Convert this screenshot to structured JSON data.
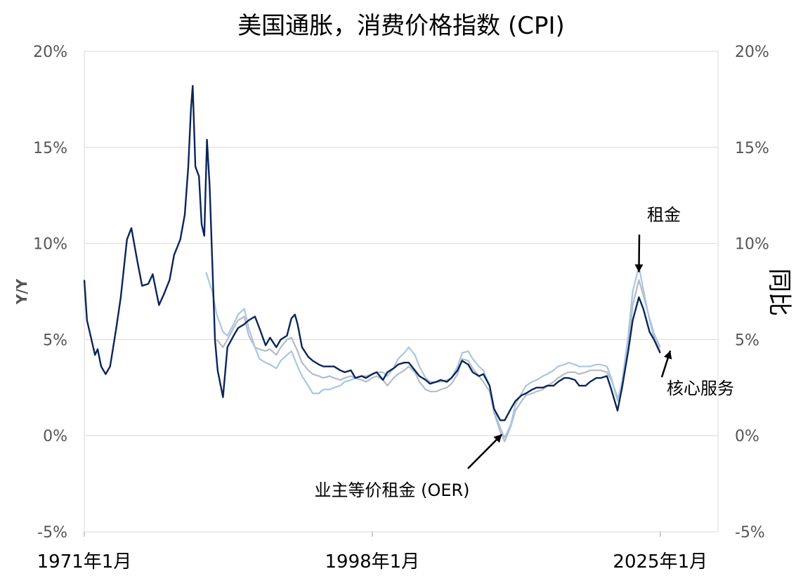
{
  "chart_data": {
    "type": "line",
    "title": "美国通胀，消费价格指数 (CPI)",
    "ylabel": "Y/Y",
    "ylabel_right": "同比",
    "ylim": [
      -5,
      20
    ],
    "yticks": [
      "-5%",
      "0%",
      "5%",
      "10%",
      "15%",
      "20%"
    ],
    "ytick_values": [
      -5,
      0,
      5,
      10,
      15,
      20
    ],
    "xlim": [
      "1971-01",
      "2030-06"
    ],
    "xticks": [
      "1971年1月",
      "1998年1月",
      "2025年1月"
    ],
    "xtick_values": [
      "1971-01",
      "1998-01",
      "2025-01"
    ],
    "grid": true,
    "series": [
      {
        "name": "核心服务",
        "color": "#0b2559",
        "points": [
          [
            "1971-01",
            8.1
          ],
          [
            "1971-04",
            6.0
          ],
          [
            "1971-08",
            5.2
          ],
          [
            "1972-01",
            4.2
          ],
          [
            "1972-04",
            4.5
          ],
          [
            "1972-08",
            3.6
          ],
          [
            "1973-01",
            3.2
          ],
          [
            "1973-06",
            3.6
          ],
          [
            "1974-01",
            5.6
          ],
          [
            "1974-06",
            7.2
          ],
          [
            "1975-01",
            10.2
          ],
          [
            "1975-06",
            10.8
          ],
          [
            "1976-01",
            9.0
          ],
          [
            "1976-06",
            7.8
          ],
          [
            "1977-01",
            7.9
          ],
          [
            "1977-06",
            8.4
          ],
          [
            "1978-01",
            6.8
          ],
          [
            "1978-06",
            7.3
          ],
          [
            "1979-01",
            8.1
          ],
          [
            "1979-06",
            9.4
          ],
          [
            "1980-01",
            10.2
          ],
          [
            "1980-06",
            11.5
          ],
          [
            "1980-10",
            14.0
          ],
          [
            "1981-01",
            17.0
          ],
          [
            "1981-03",
            18.2
          ],
          [
            "1981-06",
            14.0
          ],
          [
            "1981-10",
            13.5
          ],
          [
            "1982-01",
            11.0
          ],
          [
            "1982-04",
            10.4
          ],
          [
            "1982-07",
            15.4
          ],
          [
            "1982-10",
            13.0
          ],
          [
            "1983-01",
            9.0
          ],
          [
            "1983-04",
            5.0
          ],
          [
            "1983-07",
            3.4
          ],
          [
            "1984-01",
            2.0
          ],
          [
            "1984-06",
            4.6
          ],
          [
            "1985-01",
            5.2
          ],
          [
            "1985-06",
            5.6
          ],
          [
            "1986-01",
            5.8
          ],
          [
            "1986-06",
            6.0
          ],
          [
            "1987-01",
            6.2
          ],
          [
            "1987-06",
            5.6
          ],
          [
            "1988-01",
            4.7
          ],
          [
            "1988-06",
            5.1
          ],
          [
            "1989-01",
            4.6
          ],
          [
            "1989-06",
            5.0
          ],
          [
            "1990-01",
            5.2
          ],
          [
            "1990-06",
            6.1
          ],
          [
            "1990-10",
            6.3
          ],
          [
            "1991-01",
            5.8
          ],
          [
            "1991-06",
            4.6
          ],
          [
            "1992-01",
            4.1
          ],
          [
            "1992-06",
            3.9
          ],
          [
            "1993-01",
            3.7
          ],
          [
            "1993-06",
            3.6
          ],
          [
            "1994-01",
            3.6
          ],
          [
            "1994-06",
            3.6
          ],
          [
            "1995-01",
            3.4
          ],
          [
            "1995-06",
            3.3
          ],
          [
            "1996-01",
            3.4
          ],
          [
            "1996-06",
            3.0
          ],
          [
            "1997-01",
            3.1
          ],
          [
            "1997-06",
            3.0
          ],
          [
            "1998-01",
            3.2
          ],
          [
            "1998-06",
            3.3
          ],
          [
            "1999-01",
            2.9
          ],
          [
            "1999-06",
            3.3
          ],
          [
            "2000-01",
            3.5
          ],
          [
            "2000-06",
            3.7
          ],
          [
            "2001-01",
            3.8
          ],
          [
            "2001-06",
            3.8
          ],
          [
            "2002-01",
            3.4
          ],
          [
            "2002-06",
            3.1
          ],
          [
            "2003-01",
            2.9
          ],
          [
            "2003-06",
            2.7
          ],
          [
            "2004-01",
            2.8
          ],
          [
            "2004-06",
            2.9
          ],
          [
            "2005-01",
            2.8
          ],
          [
            "2005-06",
            3.0
          ],
          [
            "2006-01",
            3.4
          ],
          [
            "2006-06",
            3.9
          ],
          [
            "2007-01",
            3.7
          ],
          [
            "2007-06",
            3.3
          ],
          [
            "2008-01",
            3.1
          ],
          [
            "2008-06",
            3.2
          ],
          [
            "2009-01",
            2.6
          ],
          [
            "2009-06",
            1.4
          ],
          [
            "2010-01",
            0.8
          ],
          [
            "2010-06",
            0.8
          ],
          [
            "2011-01",
            1.4
          ],
          [
            "2011-06",
            1.8
          ],
          [
            "2012-01",
            2.1
          ],
          [
            "2012-06",
            2.2
          ],
          [
            "2013-01",
            2.4
          ],
          [
            "2013-06",
            2.5
          ],
          [
            "2014-01",
            2.5
          ],
          [
            "2014-06",
            2.6
          ],
          [
            "2015-01",
            2.6
          ],
          [
            "2015-06",
            2.8
          ],
          [
            "2016-01",
            3.0
          ],
          [
            "2016-06",
            3.0
          ],
          [
            "2017-01",
            2.9
          ],
          [
            "2017-06",
            2.6
          ],
          [
            "2018-01",
            2.6
          ],
          [
            "2018-06",
            2.8
          ],
          [
            "2019-01",
            3.0
          ],
          [
            "2019-06",
            3.0
          ],
          [
            "2020-01",
            3.1
          ],
          [
            "2020-06",
            2.4
          ],
          [
            "2021-01",
            1.3
          ],
          [
            "2021-06",
            2.5
          ],
          [
            "2022-01",
            4.4
          ],
          [
            "2022-06",
            6.0
          ],
          [
            "2023-01",
            7.2
          ],
          [
            "2023-06",
            6.6
          ],
          [
            "2024-01",
            5.4
          ],
          [
            "2024-06",
            5.0
          ],
          [
            "2025-01",
            4.3
          ]
        ]
      },
      {
        "name": "租金",
        "color": "#a9c6e2",
        "points": [
          [
            "1982-06",
            8.5
          ],
          [
            "1983-01",
            7.5
          ],
          [
            "1983-06",
            6.3
          ],
          [
            "1984-01",
            5.4
          ],
          [
            "1984-06",
            5.2
          ],
          [
            "1985-01",
            5.8
          ],
          [
            "1985-06",
            6.3
          ],
          [
            "1986-01",
            6.6
          ],
          [
            "1986-06",
            5.6
          ],
          [
            "1987-01",
            4.6
          ],
          [
            "1987-06",
            4.0
          ],
          [
            "1988-01",
            3.8
          ],
          [
            "1988-06",
            3.7
          ],
          [
            "1989-01",
            3.5
          ],
          [
            "1989-06",
            3.9
          ],
          [
            "1990-01",
            4.2
          ],
          [
            "1990-06",
            4.4
          ],
          [
            "1991-01",
            3.6
          ],
          [
            "1991-06",
            3.1
          ],
          [
            "1992-01",
            2.6
          ],
          [
            "1992-06",
            2.2
          ],
          [
            "1993-01",
            2.2
          ],
          [
            "1993-06",
            2.4
          ],
          [
            "1994-01",
            2.4
          ],
          [
            "1994-06",
            2.5
          ],
          [
            "1995-01",
            2.6
          ],
          [
            "1995-06",
            2.8
          ],
          [
            "1996-01",
            2.9
          ],
          [
            "1996-06",
            3.0
          ],
          [
            "1997-01",
            3.1
          ],
          [
            "1997-06",
            3.1
          ],
          [
            "1998-01",
            3.2
          ],
          [
            "1998-06",
            3.3
          ],
          [
            "1999-01",
            3.3
          ],
          [
            "1999-06",
            3.1
          ],
          [
            "2000-01",
            3.5
          ],
          [
            "2000-06",
            4.0
          ],
          [
            "2001-01",
            4.3
          ],
          [
            "2001-06",
            4.6
          ],
          [
            "2002-01",
            4.2
          ],
          [
            "2002-06",
            3.6
          ],
          [
            "2003-01",
            3.0
          ],
          [
            "2003-06",
            2.8
          ],
          [
            "2004-01",
            2.8
          ],
          [
            "2004-06",
            2.8
          ],
          [
            "2005-01",
            2.9
          ],
          [
            "2005-06",
            3.0
          ],
          [
            "2006-01",
            3.6
          ],
          [
            "2006-06",
            4.3
          ],
          [
            "2007-01",
            4.4
          ],
          [
            "2007-06",
            4.0
          ],
          [
            "2008-01",
            3.6
          ],
          [
            "2008-06",
            3.4
          ],
          [
            "2009-01",
            2.6
          ],
          [
            "2009-06",
            1.3
          ],
          [
            "2010-01",
            0.4
          ],
          [
            "2010-06",
            -0.1
          ],
          [
            "2011-01",
            0.6
          ],
          [
            "2011-06",
            1.6
          ],
          [
            "2012-01",
            2.2
          ],
          [
            "2012-06",
            2.6
          ],
          [
            "2013-01",
            2.8
          ],
          [
            "2013-06",
            2.9
          ],
          [
            "2014-01",
            3.1
          ],
          [
            "2014-06",
            3.2
          ],
          [
            "2015-01",
            3.4
          ],
          [
            "2015-06",
            3.6
          ],
          [
            "2016-01",
            3.7
          ],
          [
            "2016-06",
            3.8
          ],
          [
            "2017-01",
            3.7
          ],
          [
            "2017-06",
            3.6
          ],
          [
            "2018-01",
            3.6
          ],
          [
            "2018-06",
            3.6
          ],
          [
            "2019-01",
            3.7
          ],
          [
            "2019-06",
            3.7
          ],
          [
            "2020-01",
            3.6
          ],
          [
            "2020-06",
            3.0
          ],
          [
            "2021-01",
            1.8
          ],
          [
            "2021-06",
            2.8
          ],
          [
            "2022-01",
            5.2
          ],
          [
            "2022-06",
            7.5
          ],
          [
            "2023-01",
            8.8
          ],
          [
            "2023-06",
            7.6
          ],
          [
            "2024-01",
            6.0
          ],
          [
            "2024-06",
            5.1
          ],
          [
            "2025-01",
            4.4
          ]
        ]
      },
      {
        "name": "业主等价租金 (OER)",
        "color": "#b3bcc9",
        "points": [
          [
            "1983-06",
            5.0
          ],
          [
            "1984-01",
            4.6
          ],
          [
            "1984-06",
            5.0
          ],
          [
            "1985-01",
            5.6
          ],
          [
            "1985-06",
            6.0
          ],
          [
            "1986-01",
            6.2
          ],
          [
            "1986-06",
            5.2
          ],
          [
            "1987-01",
            4.6
          ],
          [
            "1987-06",
            4.5
          ],
          [
            "1988-01",
            4.4
          ],
          [
            "1988-06",
            4.5
          ],
          [
            "1989-01",
            4.2
          ],
          [
            "1989-06",
            4.6
          ],
          [
            "1990-01",
            5.0
          ],
          [
            "1990-06",
            5.1
          ],
          [
            "1991-01",
            4.4
          ],
          [
            "1991-06",
            3.8
          ],
          [
            "1992-01",
            3.4
          ],
          [
            "1992-06",
            3.2
          ],
          [
            "1993-01",
            3.1
          ],
          [
            "1993-06",
            3.0
          ],
          [
            "1994-01",
            3.1
          ],
          [
            "1994-06",
            3.0
          ],
          [
            "1995-01",
            2.9
          ],
          [
            "1995-06",
            3.0
          ],
          [
            "1996-01",
            3.1
          ],
          [
            "1996-06",
            3.0
          ],
          [
            "1997-01",
            2.9
          ],
          [
            "1997-06",
            2.8
          ],
          [
            "1998-01",
            3.0
          ],
          [
            "1998-06",
            3.1
          ],
          [
            "1999-01",
            2.9
          ],
          [
            "1999-06",
            2.6
          ],
          [
            "2000-01",
            3.0
          ],
          [
            "2000-06",
            3.2
          ],
          [
            "2001-01",
            3.4
          ],
          [
            "2001-06",
            3.6
          ],
          [
            "2002-01",
            3.3
          ],
          [
            "2002-06",
            2.8
          ],
          [
            "2003-01",
            2.4
          ],
          [
            "2003-06",
            2.3
          ],
          [
            "2004-01",
            2.3
          ],
          [
            "2004-06",
            2.4
          ],
          [
            "2005-01",
            2.5
          ],
          [
            "2005-06",
            2.7
          ],
          [
            "2006-01",
            3.2
          ],
          [
            "2006-06",
            4.0
          ],
          [
            "2007-01",
            3.9
          ],
          [
            "2007-06",
            3.5
          ],
          [
            "2008-01",
            3.1
          ],
          [
            "2008-06",
            2.8
          ],
          [
            "2009-01",
            2.3
          ],
          [
            "2009-06",
            1.2
          ],
          [
            "2010-01",
            0.2
          ],
          [
            "2010-06",
            -0.3
          ],
          [
            "2011-01",
            0.5
          ],
          [
            "2011-06",
            1.3
          ],
          [
            "2012-01",
            1.8
          ],
          [
            "2012-06",
            2.1
          ],
          [
            "2013-01",
            2.2
          ],
          [
            "2013-06",
            2.3
          ],
          [
            "2014-01",
            2.4
          ],
          [
            "2014-06",
            2.6
          ],
          [
            "2015-01",
            2.8
          ],
          [
            "2015-06",
            3.0
          ],
          [
            "2016-01",
            3.2
          ],
          [
            "2016-06",
            3.3
          ],
          [
            "2017-01",
            3.3
          ],
          [
            "2017-06",
            3.2
          ],
          [
            "2018-01",
            3.3
          ],
          [
            "2018-06",
            3.4
          ],
          [
            "2019-01",
            3.4
          ],
          [
            "2019-06",
            3.4
          ],
          [
            "2020-01",
            3.3
          ],
          [
            "2020-06",
            2.9
          ],
          [
            "2021-01",
            2.0
          ],
          [
            "2021-06",
            2.4
          ],
          [
            "2022-01",
            4.6
          ],
          [
            "2022-06",
            6.8
          ],
          [
            "2023-01",
            8.1
          ],
          [
            "2023-06",
            7.3
          ],
          [
            "2024-01",
            6.1
          ],
          [
            "2024-06",
            5.3
          ],
          [
            "2025-01",
            4.6
          ]
        ]
      }
    ],
    "annotations": [
      {
        "text": "租金",
        "at": [
          "2023-01",
          8.8
        ]
      },
      {
        "text": "核心服务",
        "at": [
          "2025-06",
          4.2
        ]
      },
      {
        "text": "业主等价租金 (OER)",
        "at": [
          "2010-06",
          -0.3
        ]
      }
    ]
  }
}
